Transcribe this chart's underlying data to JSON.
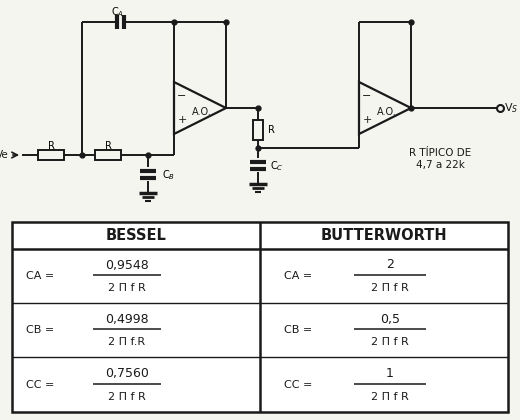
{
  "background_color": "#f5f5f0",
  "table_header_left": "BESSEL",
  "table_header_right": "BUTTERWORTH",
  "rows": [
    {
      "label": "CA =",
      "b_num": "0,9548",
      "b_den": "2 Π f R",
      "bw_num": "2",
      "bw_den": "2 Π f R"
    },
    {
      "label": "CB =",
      "b_num": "0,4998",
      "b_den": "2 Π f.R",
      "bw_num": "0,5",
      "bw_den": "2 Π f R"
    },
    {
      "label": "CC =",
      "b_num": "0,7560",
      "b_den": "2 Π f R",
      "bw_num": "1",
      "bw_den": "2 Π f R"
    }
  ],
  "circuit_note": "R TÍPICO DE\n4,7 a 22k"
}
